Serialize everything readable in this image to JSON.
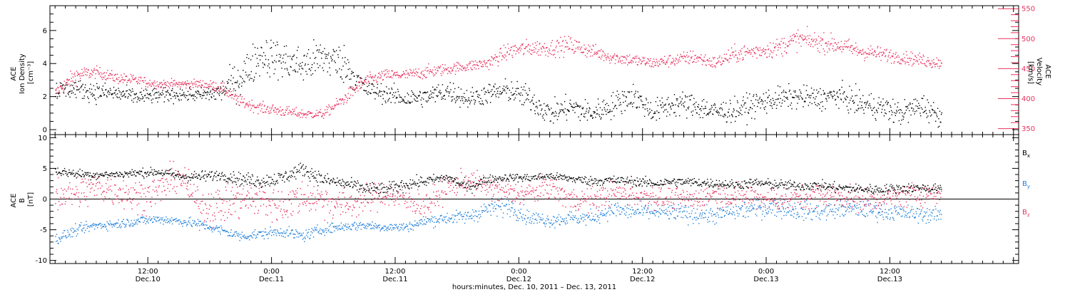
{
  "colors": {
    "density": "#000000",
    "velocity": "#e8325e",
    "bx": "#000000",
    "by": "#1f7fd8",
    "bz": "#e8325e",
    "axis": "#000000"
  },
  "chart_data": [
    {
      "type": "scatter",
      "panel": "plasma",
      "left_axis": {
        "label_lines": [
          "ACE",
          "Ion Density",
          "[cm⁻³]"
        ],
        "ylim": [
          -0.3,
          7.5
        ],
        "ticks": [
          0,
          2,
          4,
          6
        ],
        "minor": 0.5
      },
      "right_axis": {
        "label_lines": [
          "ACE",
          "Velocity",
          "[km/s]"
        ],
        "ylim": [
          340,
          555
        ],
        "ticks": [
          350,
          400,
          450,
          500,
          550
        ],
        "minor": 10
      },
      "series": [
        {
          "key": "density",
          "axis": "left",
          "x_hours": [
            3,
            5,
            7,
            9,
            11,
            13,
            15,
            17,
            19,
            21,
            23,
            25,
            27,
            29,
            31,
            33,
            35,
            37,
            39,
            41,
            43,
            45,
            47,
            49,
            51,
            53,
            55,
            57,
            59,
            61,
            63,
            65,
            67,
            69,
            71,
            73,
            75,
            77,
            79,
            81,
            83,
            85,
            87,
            89
          ],
          "y": [
            2.4,
            2.5,
            2.3,
            2.2,
            2.0,
            2.1,
            2.2,
            2.1,
            2.3,
            3.2,
            4.6,
            4.2,
            3.9,
            4.4,
            4.0,
            2.5,
            2.2,
            1.9,
            2.0,
            2.4,
            1.9,
            2.2,
            2.4,
            1.9,
            1.0,
            1.4,
            1.0,
            1.5,
            2.1,
            1.1,
            1.6,
            1.5,
            1.1,
            1.2,
            1.6,
            1.9,
            2.0,
            1.9,
            2.1,
            1.6,
            1.4,
            1.0,
            1.5,
            0.8
          ],
          "spread": [
            0.8,
            0.7,
            0.8,
            0.7,
            0.6,
            0.6,
            0.6,
            0.5,
            0.9,
            1.5,
            1.6,
            1.5,
            1.5,
            1.6,
            1.5,
            0.8,
            0.7,
            0.8,
            0.7,
            0.9,
            0.8,
            0.8,
            0.9,
            1.0,
            0.9,
            1.0,
            0.9,
            1.0,
            1.0,
            0.9,
            1.0,
            1.0,
            0.9,
            0.9,
            1.0,
            0.9,
            0.9,
            0.9,
            0.9,
            1.0,
            1.0,
            0.9,
            1.0,
            0.8
          ]
        },
        {
          "key": "velocity",
          "axis": "right",
          "x_hours": [
            3,
            5,
            7,
            9,
            11,
            13,
            15,
            17,
            19,
            21,
            23,
            25,
            27,
            29,
            31,
            33,
            35,
            37,
            39,
            41,
            43,
            45,
            47,
            49,
            51,
            53,
            55,
            57,
            59,
            61,
            63,
            65,
            67,
            69,
            71,
            73,
            75,
            77,
            79,
            81,
            83,
            85,
            87,
            89
          ],
          "y": [
            410,
            440,
            445,
            435,
            430,
            425,
            425,
            425,
            420,
            395,
            385,
            380,
            375,
            375,
            400,
            430,
            440,
            440,
            445,
            450,
            455,
            460,
            480,
            485,
            485,
            490,
            480,
            470,
            465,
            460,
            465,
            470,
            460,
            475,
            480,
            485,
            500,
            495,
            490,
            480,
            475,
            470,
            465,
            460
          ],
          "spread": [
            14,
            18,
            12,
            12,
            12,
            10,
            10,
            10,
            12,
            12,
            12,
            12,
            10,
            10,
            14,
            14,
            12,
            12,
            14,
            12,
            12,
            14,
            18,
            18,
            18,
            20,
            16,
            14,
            14,
            12,
            14,
            16,
            14,
            18,
            18,
            20,
            22,
            20,
            20,
            18,
            16,
            14,
            14,
            14
          ]
        }
      ]
    },
    {
      "type": "scatter",
      "panel": "magnetic",
      "axis": {
        "label_lines": [
          "ACE",
          "B",
          "[nT]"
        ],
        "ylim": [
          -10.5,
          10.5
        ],
        "ticks": [
          -10,
          -5,
          0,
          5,
          10
        ],
        "minor": 1
      },
      "zero_line": true,
      "legend": {
        "placement": "right",
        "entries": [
          "B_x",
          "B_y",
          "B_z"
        ]
      },
      "series": [
        {
          "key": "bx",
          "label": "B",
          "sub": "x",
          "x_hours": [
            3,
            5,
            7,
            9,
            11,
            13,
            15,
            17,
            19,
            21,
            23,
            25,
            27,
            29,
            31,
            33,
            35,
            37,
            39,
            41,
            43,
            45,
            47,
            49,
            51,
            53,
            55,
            57,
            59,
            61,
            63,
            65,
            67,
            69,
            71,
            73,
            75,
            77,
            79,
            81,
            83,
            85,
            87,
            89
          ],
          "y": [
            4.6,
            4.2,
            4.0,
            4.1,
            4.3,
            4.5,
            3.8,
            3.7,
            4.0,
            3.3,
            3.0,
            3.5,
            5.0,
            3.2,
            2.6,
            1.8,
            1.5,
            2.5,
            3.0,
            3.6,
            2.0,
            3.3,
            3.6,
            3.5,
            3.8,
            3.4,
            3.0,
            3.1,
            3.0,
            2.6,
            2.9,
            2.8,
            2.6,
            2.4,
            2.7,
            2.4,
            2.2,
            2.3,
            1.9,
            1.7,
            1.6,
            1.8,
            1.9,
            1.6
          ],
          "spread": [
            0.9,
            1.0,
            0.9,
            0.8,
            0.9,
            0.9,
            1.2,
            1.3,
            1.0,
            1.4,
            1.5,
            1.5,
            1.5,
            1.5,
            1.3,
            1.4,
            1.5,
            1.3,
            1.1,
            1.0,
            1.3,
            0.9,
            0.8,
            0.9,
            0.8,
            0.9,
            1.0,
            1.0,
            1.0,
            1.0,
            0.9,
            1.0,
            1.0,
            1.0,
            1.0,
            1.1,
            1.0,
            1.0,
            1.1,
            1.0,
            1.1,
            1.0,
            1.0,
            1.0
          ]
        },
        {
          "key": "by",
          "label": "B",
          "sub": "y",
          "x_hours": [
            3,
            5,
            7,
            9,
            11,
            13,
            15,
            17,
            19,
            21,
            23,
            25,
            27,
            29,
            31,
            33,
            35,
            37,
            39,
            41,
            43,
            45,
            47,
            49,
            51,
            53,
            55,
            57,
            59,
            61,
            63,
            65,
            67,
            69,
            71,
            73,
            75,
            77,
            79,
            81,
            83,
            85,
            87,
            89
          ],
          "y": [
            -6.5,
            -5.0,
            -4.2,
            -4.0,
            -3.5,
            -3.2,
            -3.5,
            -4.0,
            -5.0,
            -6.0,
            -5.6,
            -5.2,
            -6.0,
            -4.8,
            -4.4,
            -4.2,
            -4.5,
            -4.5,
            -3.5,
            -3.0,
            -2.8,
            -1.5,
            -1.0,
            -3.0,
            -3.4,
            -3.0,
            -3.0,
            -1.6,
            -2.0,
            -2.0,
            -2.2,
            -2.4,
            -2.6,
            -1.8,
            -1.5,
            -1.2,
            -1.8,
            -2.0,
            -1.6,
            -1.5,
            -2.0,
            -2.2,
            -2.4,
            -2.6
          ],
          "spread": [
            1.2,
            1.1,
            1.0,
            1.0,
            1.0,
            1.0,
            1.0,
            1.0,
            1.1,
            1.1,
            1.1,
            1.1,
            1.2,
            1.1,
            1.0,
            1.0,
            1.0,
            1.0,
            1.2,
            1.3,
            1.4,
            2.0,
            2.0,
            1.6,
            1.4,
            1.6,
            1.6,
            1.9,
            1.7,
            1.7,
            1.8,
            1.8,
            1.7,
            1.9,
            2.0,
            2.1,
            2.0,
            1.9,
            1.9,
            1.8,
            1.8,
            1.7,
            1.7,
            1.6
          ]
        },
        {
          "key": "bz",
          "label": "B",
          "sub": "z",
          "x_hours": [
            3,
            5,
            7,
            9,
            11,
            13,
            15,
            17,
            19,
            21,
            23,
            25,
            27,
            29,
            31,
            33,
            35,
            37,
            39,
            41,
            43,
            45,
            47,
            49,
            51,
            53,
            55,
            57,
            59,
            61,
            63,
            65,
            67,
            69,
            71,
            73,
            75,
            77,
            79,
            81,
            83,
            85,
            87,
            89
          ],
          "y": [
            1.0,
            1.0,
            2.0,
            1.5,
            0.5,
            1.5,
            4.0,
            -1.0,
            -1.0,
            0.0,
            0.0,
            -1.0,
            0.5,
            0.0,
            -1.0,
            0.0,
            1.0,
            0.0,
            -1.0,
            2.0,
            3.0,
            2.0,
            1.0,
            1.0,
            2.0,
            0.0,
            0.0,
            1.0,
            1.0,
            0.5,
            0.0,
            0.0,
            1.0,
            0.5,
            0.5,
            0.0,
            0.0,
            1.0,
            0.5,
            0.0,
            0.0,
            0.5,
            1.0,
            1.0
          ],
          "spread": [
            4.0,
            4.0,
            3.5,
            3.5,
            3.5,
            3.5,
            3.0,
            4.0,
            4.0,
            4.0,
            4.0,
            4.0,
            3.5,
            3.5,
            3.5,
            3.0,
            3.0,
            3.0,
            3.0,
            2.5,
            2.5,
            2.5,
            2.5,
            2.5,
            2.5,
            2.5,
            2.5,
            2.5,
            2.5,
            2.5,
            2.5,
            2.5,
            2.5,
            2.5,
            2.5,
            2.5,
            2.5,
            2.5,
            2.5,
            2.5,
            2.5,
            2.5,
            2.5,
            2.0
          ]
        }
      ]
    }
  ],
  "x_axis": {
    "xlim_hours": [
      2.5,
      96.5
    ],
    "major_step_hours": 12,
    "minor_step_hours": 1,
    "ticks": [
      {
        "hour": 12,
        "time": "12:00",
        "date": "Dec.10"
      },
      {
        "hour": 24,
        "time": "0:00",
        "date": "Dec.11"
      },
      {
        "hour": 36,
        "time": "12:00",
        "date": "Dec.11"
      },
      {
        "hour": 48,
        "time": "0:00",
        "date": "Dec.12"
      },
      {
        "hour": 60,
        "time": "12:00",
        "date": "Dec.12"
      },
      {
        "hour": 72,
        "time": "0:00",
        "date": "Dec.13"
      },
      {
        "hour": 84,
        "time": "12:00",
        "date": "Dec.13"
      }
    ],
    "title": "hours:minutes, Dec. 10, 2011 – Dec. 13, 2011"
  }
}
